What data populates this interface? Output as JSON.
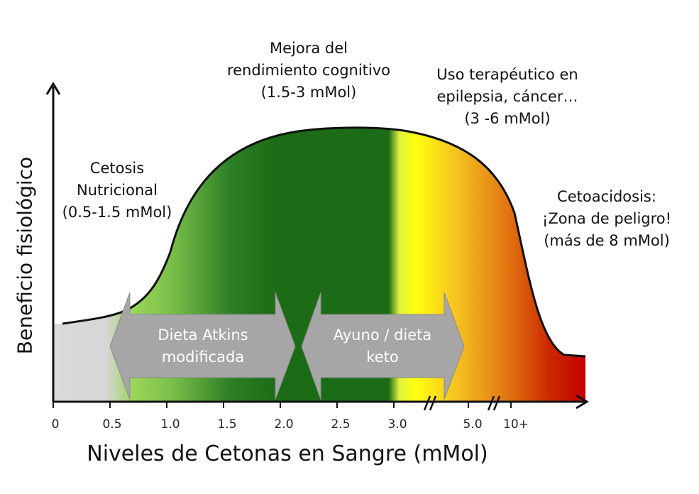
{
  "zones": [
    {
      "lines": [
        "Cetosis",
        "Nutricional",
        "(0.5-1.5 mMol)"
      ]
    },
    {
      "lines": [
        "Mejora del",
        "rendimiento cognitivo",
        "(1.5-3 mMol)"
      ]
    },
    {
      "lines": [
        "Uso terapéutico en",
        "epilepsia, cáncer…",
        "(3 -6 mMol)"
      ]
    },
    {
      "lines": [
        "Cetoacidosis:",
        "¡Zona de peligro!",
        "(más de 8 mMol)"
      ]
    }
  ],
  "arrows": [
    {
      "lines": [
        "Dieta Atkins",
        "modificada"
      ]
    },
    {
      "lines": [
        "Ayuno / dieta",
        "keto"
      ]
    }
  ],
  "axes": {
    "y_label": "Beneficio fisiológico",
    "x_label": "Niveles de Cetonas en Sangre (mMol)",
    "ticks": [
      "0",
      "0.5",
      "1.0",
      "1.5",
      "2.0",
      "2.5",
      "3.0",
      "5.0",
      "10+"
    ]
  },
  "colors": {
    "gray": "#d9d9d9",
    "light_green": "#9bd65a",
    "dark_green": "#1c6b16",
    "yellow": "#ffff00",
    "orange": "#f0a020",
    "red": "#c00000",
    "arrow_fill": "#a6a6a6"
  }
}
